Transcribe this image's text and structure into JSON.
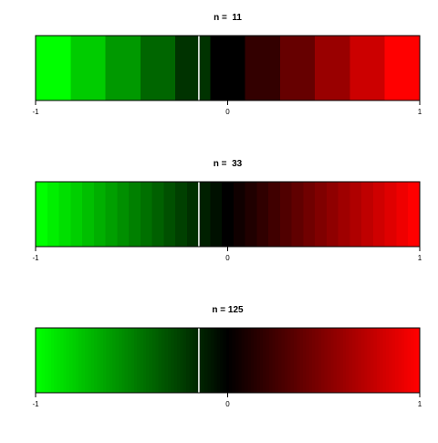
{
  "chart_data": [
    {
      "type": "heatmap",
      "title": "n =  11",
      "n": 11,
      "xlim": [
        -1,
        1
      ],
      "x_ticks": [
        -1,
        0,
        1
      ],
      "tick_labels": [
        "-1",
        "0",
        "1"
      ],
      "colors": [
        "#00ff00",
        "#00cc00",
        "#009900",
        "#006600",
        "#003300",
        "#000000",
        "#330000",
        "#660000",
        "#990000",
        "#cc0000",
        "#ff0000"
      ],
      "marker_x": -0.15,
      "marker_color": "#ffffff",
      "grid": false,
      "legend": "none"
    },
    {
      "type": "heatmap",
      "title": "n =  33",
      "n": 33,
      "xlim": [
        -1,
        1
      ],
      "x_ticks": [
        -1,
        0,
        1
      ],
      "tick_labels": [
        "-1",
        "0",
        "1"
      ],
      "colors": "green-black-red gradient, 33 steps",
      "marker_x": -0.15,
      "marker_color": "#ffffff",
      "grid": false,
      "legend": "none"
    },
    {
      "type": "heatmap",
      "title": "n = 125",
      "n": 125,
      "xlim": [
        -1,
        1
      ],
      "x_ticks": [
        -1,
        0,
        1
      ],
      "tick_labels": [
        "-1",
        "0",
        "1"
      ],
      "colors": "green-black-red gradient, 125 steps",
      "marker_x": -0.15,
      "marker_color": "#ffffff",
      "grid": false,
      "legend": "none"
    }
  ]
}
